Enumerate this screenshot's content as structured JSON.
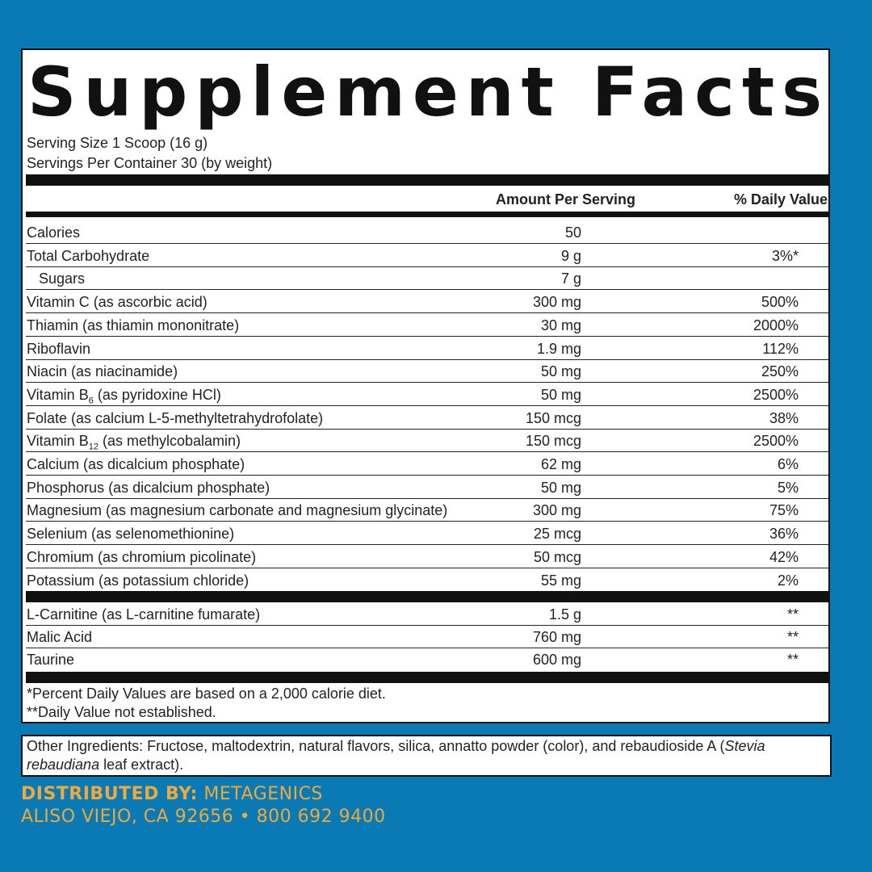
{
  "label": {
    "title": "Supplement Facts",
    "serving_size": "Serving Size 1 Scoop (16 g)",
    "servings_per_container": "Servings Per Container 30 (by weight)",
    "col_amount": "Amount Per Serving",
    "col_dv": "% Daily Value",
    "rows": [
      {
        "name": "Calories",
        "amount": "50",
        "dv": ""
      },
      {
        "name": "Total Carbohydrate",
        "amount": "9 g",
        "dv": "3%*"
      },
      {
        "name": "Sugars",
        "amount": "7 g",
        "dv": ""
      },
      {
        "name": "Vitamin C (as ascorbic acid)",
        "amount": "300 mg",
        "dv": "500%"
      },
      {
        "name": "Thiamin (as thiamin mononitrate)",
        "amount": "30 mg",
        "dv": "2000%"
      },
      {
        "name": "Riboflavin",
        "amount": "1.9 mg",
        "dv": "112%"
      },
      {
        "name": "Niacin (as niacinamide)",
        "amount": "50 mg",
        "dv": "250%"
      },
      {
        "name_pre": "Vitamin B",
        "name_sub": "6",
        "name_post": " (as pyridoxine HCl)",
        "amount": "50 mg",
        "dv": "2500%"
      },
      {
        "name": "Folate (as calcium L-5-methyltetrahydrofolate)",
        "amount": "150 mcg",
        "dv": "38%"
      },
      {
        "name_pre": "Vitamin B",
        "name_sub": "12",
        "name_post": " (as methylcobalamin)",
        "amount": "150 mcg",
        "dv": "2500%"
      },
      {
        "name": "Calcium (as dicalcium phosphate)",
        "amount": "62 mg",
        "dv": "6%"
      },
      {
        "name": "Phosphorus (as dicalcium phosphate)",
        "amount": "50 mg",
        "dv": "5%"
      },
      {
        "name": "Magnesium (as magnesium carbonate and magnesium glycinate)",
        "amount": "300 mg",
        "dv": "75%"
      },
      {
        "name": "Selenium (as selenomethionine)",
        "amount": "25 mcg",
        "dv": "36%"
      },
      {
        "name": "Chromium (as chromium picolinate)",
        "amount": "50 mcg",
        "dv": "42%"
      },
      {
        "name": "Potassium (as potassium chloride)",
        "amount": "55 mg",
        "dv": "2%"
      }
    ],
    "rows2": [
      {
        "name": "L-Carnitine (as L-carnitine fumarate)",
        "amount": "1.5 g",
        "dv": "**"
      },
      {
        "name": "Malic Acid",
        "amount": "760 mg",
        "dv": "**"
      },
      {
        "name": "Taurine",
        "amount": "600 mg",
        "dv": "**"
      }
    ],
    "footnote1": "*Percent Daily Values are based on a 2,000 calorie diet.",
    "footnote2": "**Daily Value not established."
  },
  "ingredients": {
    "line1_text": "Other Ingredients: Fructose, maltodextrin, natural flavors, silica, annatto powder (color), and rebaudioside A (",
    "line1_italic": "Stevia",
    "line2_italic": "rebaudiana",
    "line2_text": " leaf extract)."
  },
  "distributor": {
    "label": "DISTRIBUTED BY:",
    "name": " METAGENICS",
    "address": "ALISO VIEJO, CA 92656 • 800 692 9400"
  }
}
